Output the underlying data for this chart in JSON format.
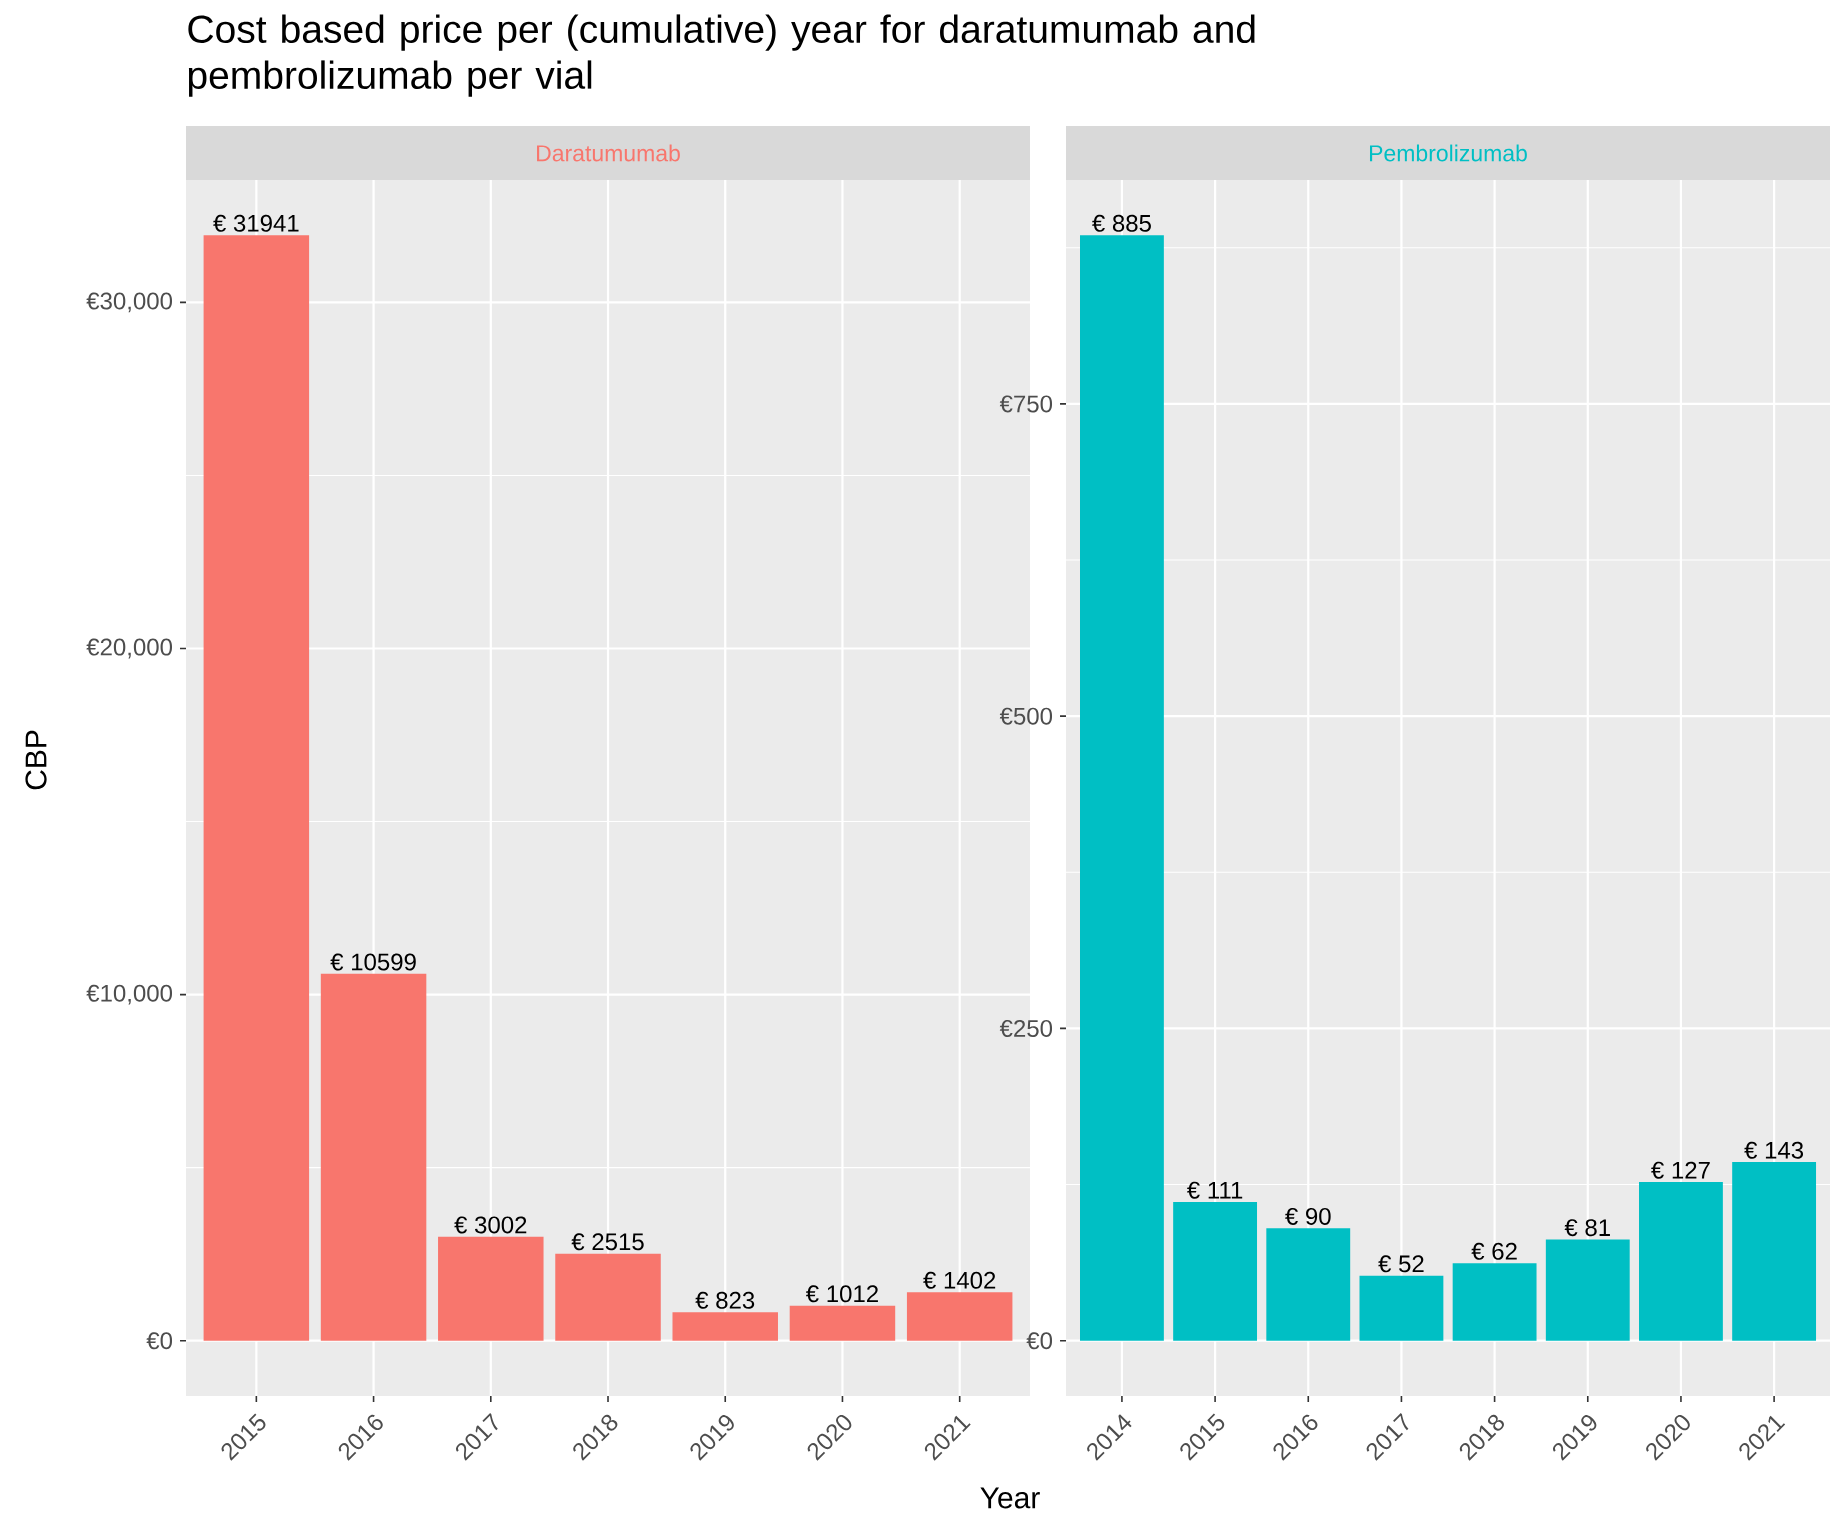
{
  "chart_data": [
    {
      "type": "bar",
      "title": "Cost based price per (cumulative) year for daratumumab and pembrolizumab per vial",
      "subtitle": "Daratumumab",
      "ylabel": "CBP",
      "xlabel": "Year",
      "categories": [
        "2015",
        "2016",
        "2017",
        "2018",
        "2019",
        "2020",
        "2021"
      ],
      "values": [
        31941,
        10599,
        3002,
        2515,
        823,
        1012,
        1402
      ],
      "value_labels": [
        "€ 31941",
        "€ 10599",
        "€ 3002",
        "€ 2515",
        "€ 823",
        "€ 1012",
        "€ 1402"
      ],
      "color": "#f8766d",
      "ylim": [
        -1597.05,
        33538.05
      ],
      "yticks": [
        {
          "value": 0,
          "label": "€0"
        },
        {
          "value": 10000,
          "label": "€10,000"
        },
        {
          "value": 20000,
          "label": "€20,000"
        },
        {
          "value": 30000,
          "label": "€30,000"
        }
      ],
      "grid": true
    },
    {
      "type": "bar",
      "subtitle": "Pembrolizumab",
      "categories": [
        "2014",
        "2015",
        "2016",
        "2017",
        "2018",
        "2019",
        "2020",
        "2021"
      ],
      "values": [
        885,
        111,
        90,
        52,
        62,
        81,
        127,
        143
      ],
      "value_labels": [
        "€ 885",
        "€ 111",
        "€ 90",
        "€ 52",
        "€ 62",
        "€ 81",
        "€ 127",
        "€ 143"
      ],
      "color": "#00bfc4",
      "ylim": [
        -44.25,
        929.25
      ],
      "yticks": [
        {
          "value": 0,
          "label": "€0"
        },
        {
          "value": 250,
          "label": "€250"
        },
        {
          "value": 500,
          "label": "€500"
        },
        {
          "value": 750,
          "label": "€750"
        }
      ],
      "grid": true
    }
  ]
}
